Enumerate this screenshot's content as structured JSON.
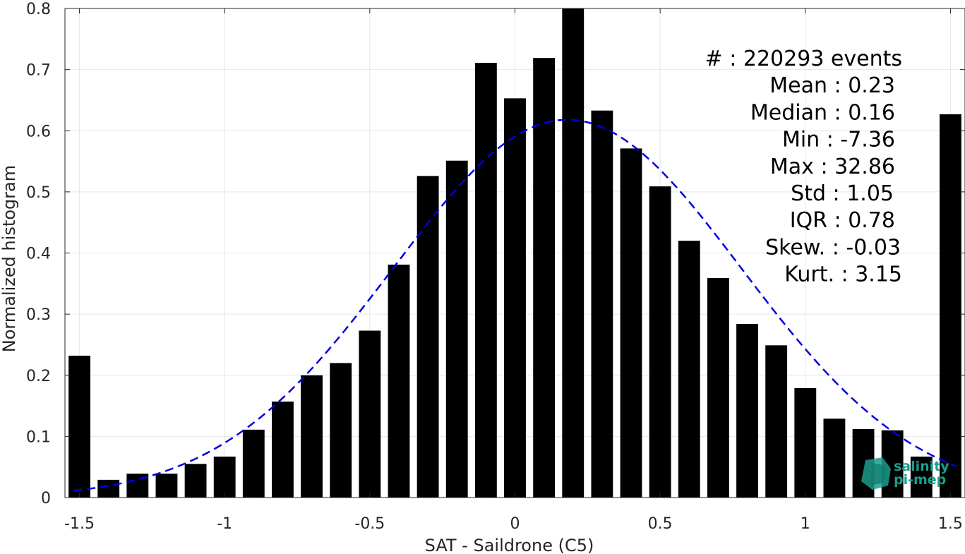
{
  "chart_data": {
    "type": "bar",
    "xlabel": "SAT - Saildrone (C5)",
    "ylabel": "Normalized histogram",
    "xlim": [
      -1.55,
      1.55
    ],
    "ylim": [
      0,
      0.8
    ],
    "xticks": [
      -1.5,
      -1,
      -0.5,
      0,
      0.5,
      1,
      1.5
    ],
    "xtick_labels": [
      "-1.5",
      "-1",
      "-0.5",
      "0",
      "0.5",
      "1",
      "1.5"
    ],
    "yticks": [
      0,
      0.1,
      0.2,
      0.3,
      0.4,
      0.5,
      0.6,
      0.7,
      0.8
    ],
    "ytick_labels": [
      "0",
      "0.1",
      "0.2",
      "0.3",
      "0.4",
      "0.5",
      "0.6",
      "0.7",
      "0.8"
    ],
    "grid": true,
    "bars": {
      "color": "#000000",
      "x": [
        -1.5,
        -1.4,
        -1.3,
        -1.2,
        -1.1,
        -1.0,
        -0.9,
        -0.8,
        -0.7,
        -0.6,
        -0.5,
        -0.4,
        -0.3,
        -0.2,
        -0.1,
        0.0,
        0.1,
        0.2,
        0.3,
        0.4,
        0.5,
        0.6,
        0.7,
        0.8,
        0.9,
        1.0,
        1.1,
        1.2,
        1.3,
        1.4,
        1.5
      ],
      "values": [
        0.232,
        0.029,
        0.039,
        0.039,
        0.055,
        0.067,
        0.111,
        0.157,
        0.2,
        0.22,
        0.273,
        0.381,
        0.526,
        0.551,
        0.711,
        0.653,
        0.719,
        0.8,
        0.633,
        0.571,
        0.509,
        0.42,
        0.359,
        0.284,
        0.249,
        0.179,
        0.129,
        0.112,
        0.11,
        0.067,
        0.627
      ]
    },
    "fit_curve": {
      "style": "dashed",
      "color": "#0000e6",
      "mean": 0.18,
      "std": 0.6,
      "peak": 0.618,
      "x_range": [
        -1.52,
        1.52
      ]
    },
    "stats": [
      "#  : 220293 events",
      "Mean : 0.23",
      "Median : 0.16",
      "Min : -7.36",
      "Max : 32.86",
      "Std : 1.05",
      "IQR : 0.78",
      "Skew. : -0.03",
      "Kurt. : 3.15"
    ],
    "logo": {
      "line1": "salinity",
      "line2": "pi-mep",
      "color": "#1a9e8c"
    }
  }
}
